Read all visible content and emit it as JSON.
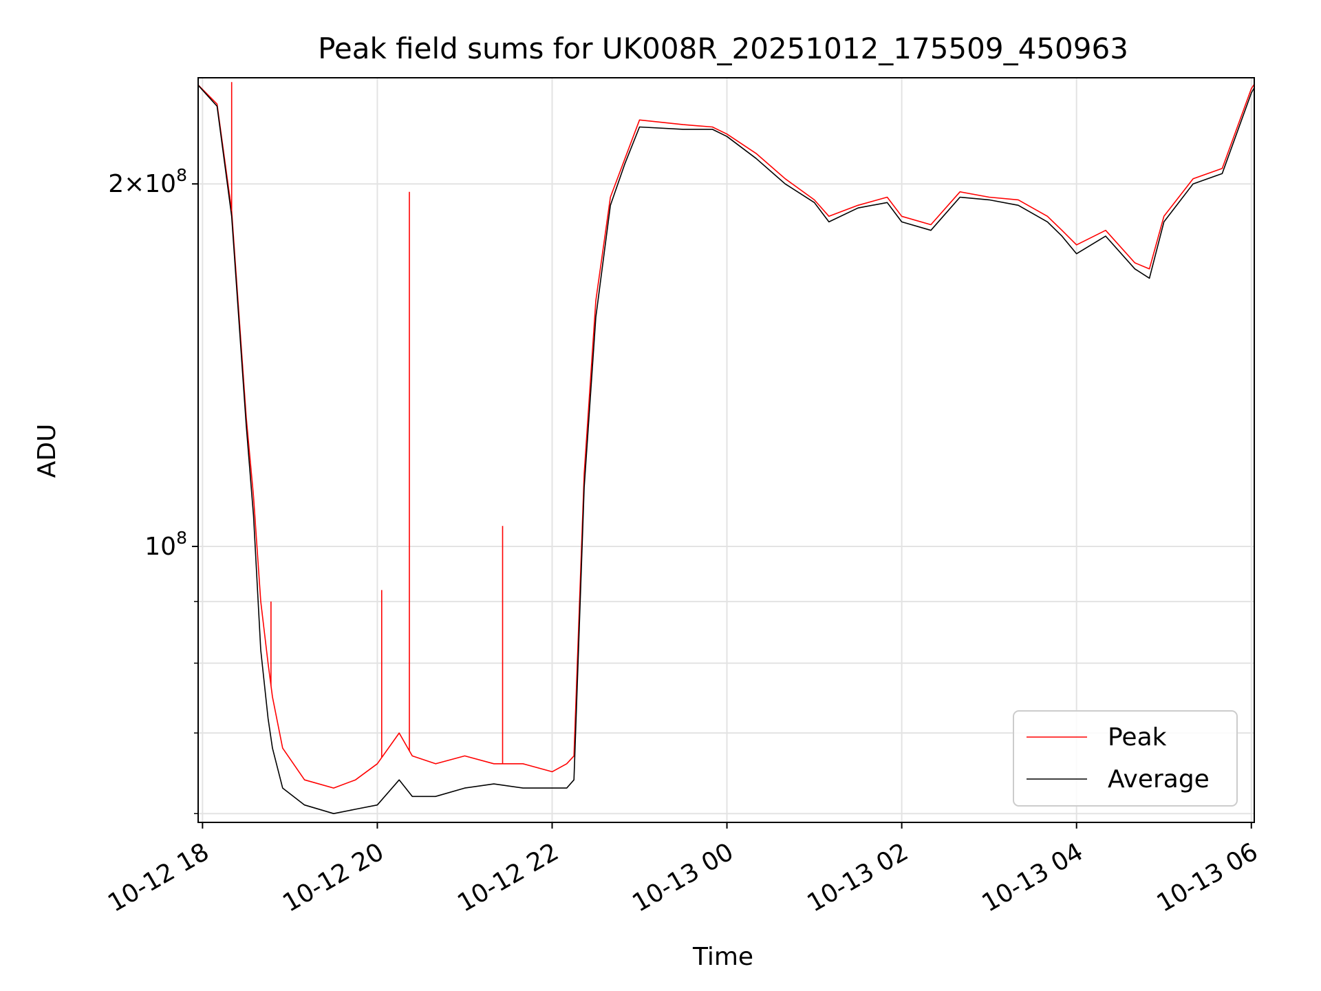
{
  "chart_data": {
    "type": "line",
    "title": "Peak field sums for UK008R_20251012_175509_450963",
    "xlabel": "Time",
    "ylabel": "ADU",
    "y_scale": "log",
    "ylim": [
      59000000,
      245000000
    ],
    "xlim": [
      "2025-10-12 17:57",
      "2025-10-13 06:02"
    ],
    "x_ticks": [
      "2025-10-12 18:00",
      "2025-10-12 20:00",
      "2025-10-12 22:00",
      "2025-10-13 00:00",
      "2025-10-13 02:00",
      "2025-10-13 04:00",
      "2025-10-13 06:00"
    ],
    "x_tick_labels": [
      "10-12 18",
      "10-12 20",
      "10-12 22",
      "10-13 00",
      "10-13 02",
      "10-13 04",
      "10-13 06"
    ],
    "y_major_ticks": [
      100000000,
      200000000
    ],
    "y_major_labels": [
      {
        "base": "10",
        "exp": "8",
        "coef": ""
      },
      {
        "base": "10",
        "exp": "8",
        "coef": "2×"
      }
    ],
    "y_minor_ticks": [
      60000000,
      70000000,
      80000000,
      90000000
    ],
    "grid": true,
    "legend": {
      "location": "lower right",
      "entries": [
        "Peak",
        "Average"
      ]
    },
    "series": [
      {
        "name": "Peak",
        "color": "#ff0000",
        "x": [
          "2025-10-12 17:55",
          "2025-10-12 18:10",
          "2025-10-12 18:20",
          "2025-10-12 18:30",
          "2025-10-12 18:35",
          "2025-10-12 18:40",
          "2025-10-12 18:45",
          "2025-10-12 18:48",
          "2025-10-12 18:55",
          "2025-10-12 19:10",
          "2025-10-12 19:30",
          "2025-10-12 19:45",
          "2025-10-12 20:00",
          "2025-10-12 20:15",
          "2025-10-12 20:24",
          "2025-10-12 20:40",
          "2025-10-12 21:00",
          "2025-10-12 21:20",
          "2025-10-12 21:40",
          "2025-10-12 22:00",
          "2025-10-12 22:10",
          "2025-10-12 22:15",
          "2025-10-12 22:22",
          "2025-10-12 22:30",
          "2025-10-12 22:40",
          "2025-10-12 22:50",
          "2025-10-12 23:00",
          "2025-10-12 23:30",
          "2025-10-12 23:50",
          "2025-10-13 00:00",
          "2025-10-13 00:20",
          "2025-10-13 00:40",
          "2025-10-13 01:00",
          "2025-10-13 01:10",
          "2025-10-13 01:30",
          "2025-10-13 01:50",
          "2025-10-13 02:00",
          "2025-10-13 02:20",
          "2025-10-13 02:40",
          "2025-10-13 03:00",
          "2025-10-13 03:20",
          "2025-10-13 03:40",
          "2025-10-13 03:50",
          "2025-10-13 04:00",
          "2025-10-13 04:20",
          "2025-10-13 04:40",
          "2025-10-13 04:50",
          "2025-10-13 05:00",
          "2025-10-13 05:20",
          "2025-10-13 05:40",
          "2025-10-13 06:00",
          "2025-10-13 06:05"
        ],
        "values": [
          243000000,
          233000000,
          190000000,
          128000000,
          110000000,
          90000000,
          80000000,
          75000000,
          68000000,
          64000000,
          63000000,
          64000000,
          66000000,
          70000000,
          67000000,
          66000000,
          67000000,
          66000000,
          66000000,
          65000000,
          66000000,
          67000000,
          115000000,
          160000000,
          195000000,
          210000000,
          226000000,
          224000000,
          223000000,
          220000000,
          212000000,
          202000000,
          194000000,
          188000000,
          192000000,
          195000000,
          188000000,
          185000000,
          197000000,
          195000000,
          194000000,
          188000000,
          183000000,
          178000000,
          183000000,
          172000000,
          170000000,
          188000000,
          202000000,
          206000000,
          240000000,
          245000000
        ]
      },
      {
        "name": "Average",
        "color": "#000000",
        "x": [
          "2025-10-12 17:55",
          "2025-10-12 18:10",
          "2025-10-12 18:20",
          "2025-10-12 18:30",
          "2025-10-12 18:35",
          "2025-10-12 18:40",
          "2025-10-12 18:45",
          "2025-10-12 18:48",
          "2025-10-12 18:55",
          "2025-10-12 19:10",
          "2025-10-12 19:30",
          "2025-10-12 19:45",
          "2025-10-12 20:00",
          "2025-10-12 20:15",
          "2025-10-12 20:24",
          "2025-10-12 20:40",
          "2025-10-12 21:00",
          "2025-10-12 21:20",
          "2025-10-12 21:40",
          "2025-10-12 22:00",
          "2025-10-12 22:10",
          "2025-10-12 22:15",
          "2025-10-12 22:22",
          "2025-10-12 22:30",
          "2025-10-12 22:40",
          "2025-10-12 22:50",
          "2025-10-12 23:00",
          "2025-10-12 23:30",
          "2025-10-12 23:50",
          "2025-10-13 00:00",
          "2025-10-13 00:20",
          "2025-10-13 00:40",
          "2025-10-13 01:00",
          "2025-10-13 01:10",
          "2025-10-13 01:30",
          "2025-10-13 01:50",
          "2025-10-13 02:00",
          "2025-10-13 02:20",
          "2025-10-13 02:40",
          "2025-10-13 03:00",
          "2025-10-13 03:20",
          "2025-10-13 03:40",
          "2025-10-13 03:50",
          "2025-10-13 04:00",
          "2025-10-13 04:20",
          "2025-10-13 04:40",
          "2025-10-13 04:50",
          "2025-10-13 05:00",
          "2025-10-13 05:20",
          "2025-10-13 05:40",
          "2025-10-13 06:00",
          "2025-10-13 06:05"
        ],
        "values": [
          243000000,
          232000000,
          188000000,
          126000000,
          106000000,
          82000000,
          72000000,
          68000000,
          63000000,
          61000000,
          60000000,
          60500000,
          61000000,
          64000000,
          62000000,
          62000000,
          63000000,
          63500000,
          63000000,
          63000000,
          63000000,
          64000000,
          112000000,
          155000000,
          192000000,
          208000000,
          223000000,
          222000000,
          222000000,
          219000000,
          210000000,
          200000000,
          193000000,
          186000000,
          191000000,
          193000000,
          186000000,
          183000000,
          195000000,
          194000000,
          192000000,
          186000000,
          181000000,
          175000000,
          181000000,
          170000000,
          167000000,
          186000000,
          200000000,
          204000000,
          238000000,
          244000000
        ]
      }
    ],
    "annotations": [
      {
        "series": "Peak",
        "x": "2025-10-12 18:20",
        "value": 243000000
      },
      {
        "series": "Peak",
        "x": "2025-10-12 20:22",
        "value": 197000000
      },
      {
        "series": "Peak",
        "x": "2025-10-12 21:26",
        "value": 104000000
      },
      {
        "series": "Peak",
        "x": "2025-10-12 20:03",
        "value": 92000000
      },
      {
        "series": "Peak",
        "x": "2025-10-12 18:47",
        "value": 90000000
      }
    ]
  }
}
